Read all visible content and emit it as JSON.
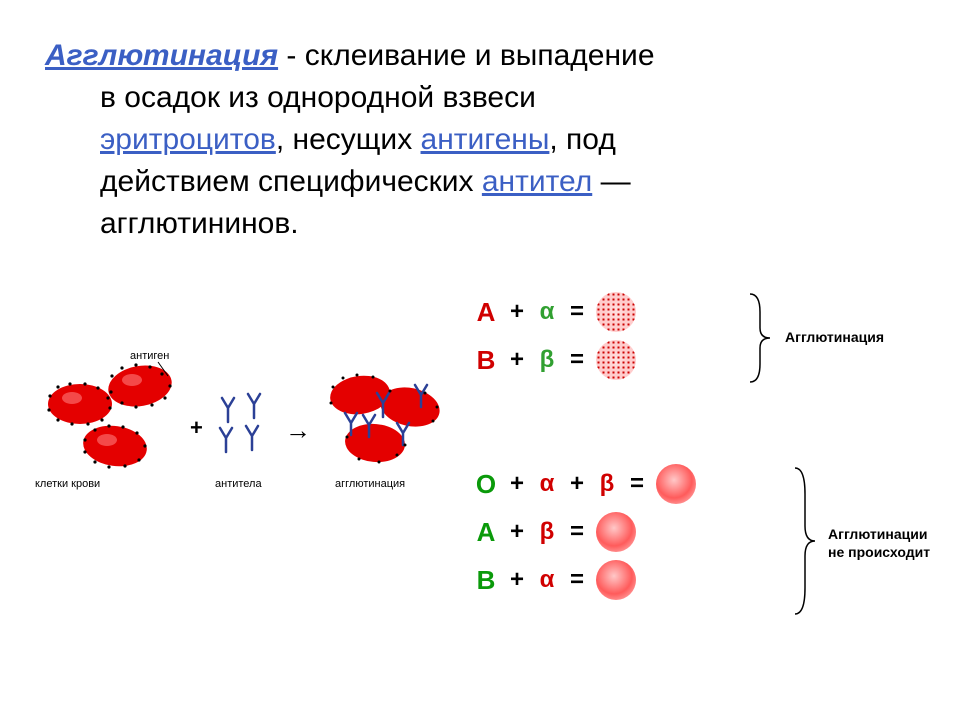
{
  "definition": {
    "term": "Агглютинация",
    "text_parts": [
      " - склеивание и выпадение",
      "в осадок из однородной взвеси ",
      ", несущих ",
      ", под",
      "действием специфических ",
      " —",
      "агглютининов."
    ],
    "link1": "эритроцитов",
    "link2": "антигены",
    "link3": "антител"
  },
  "left_diagram": {
    "label_antigen": "антиген",
    "label_cells": "клетки крови",
    "label_antibody": "антитела",
    "label_result": "агглютинация",
    "cell_color": "#e40000",
    "antibody_color": "#2b4096",
    "plus": "+",
    "arrow": "→"
  },
  "equations": {
    "rows": [
      {
        "ag": "A",
        "ag_class": "ag-red",
        "parts": [
          {
            "t": "op",
            "v": "+"
          },
          {
            "t": "greek",
            "v": "α",
            "c": "greek-green"
          },
          {
            "t": "op",
            "v": "="
          }
        ],
        "result": "agglut"
      },
      {
        "ag": "B",
        "ag_class": "ag-red",
        "parts": [
          {
            "t": "op",
            "v": "+"
          },
          {
            "t": "greek",
            "v": "β",
            "c": "greek-green"
          },
          {
            "t": "op",
            "v": "="
          }
        ],
        "result": "agglut"
      },
      {
        "ag": "O",
        "ag_class": "ag-green",
        "parts": [
          {
            "t": "op",
            "v": "+"
          },
          {
            "t": "greek",
            "v": "α",
            "c": "greek-red"
          },
          {
            "t": "op",
            "v": "+"
          },
          {
            "t": "greek",
            "v": "β",
            "c": "greek-red"
          },
          {
            "t": "op",
            "v": "="
          }
        ],
        "result": "smooth"
      },
      {
        "ag": "A",
        "ag_class": "ag-green",
        "parts": [
          {
            "t": "op",
            "v": "+"
          },
          {
            "t": "greek",
            "v": "β",
            "c": "greek-red"
          },
          {
            "t": "op",
            "v": "="
          }
        ],
        "result": "smooth"
      },
      {
        "ag": "B",
        "ag_class": "ag-green",
        "parts": [
          {
            "t": "op",
            "v": "+"
          },
          {
            "t": "greek",
            "v": "α",
            "c": "greek-red"
          },
          {
            "t": "op",
            "v": "="
          }
        ],
        "result": "smooth"
      }
    ],
    "group1_label": "Агглютинация",
    "group2_label_line1": "Агглютинации",
    "group2_label_line2": "не происходит"
  },
  "colors": {
    "link": "#3b5fc4",
    "red": "#d00000",
    "green": "#0a9a0a",
    "cell": "#e40000",
    "antibody": "#2b4096",
    "background": "#ffffff"
  },
  "fonts": {
    "definition_size": 30,
    "equation_size": 26,
    "label_size": 14,
    "tiny_size": 11
  }
}
